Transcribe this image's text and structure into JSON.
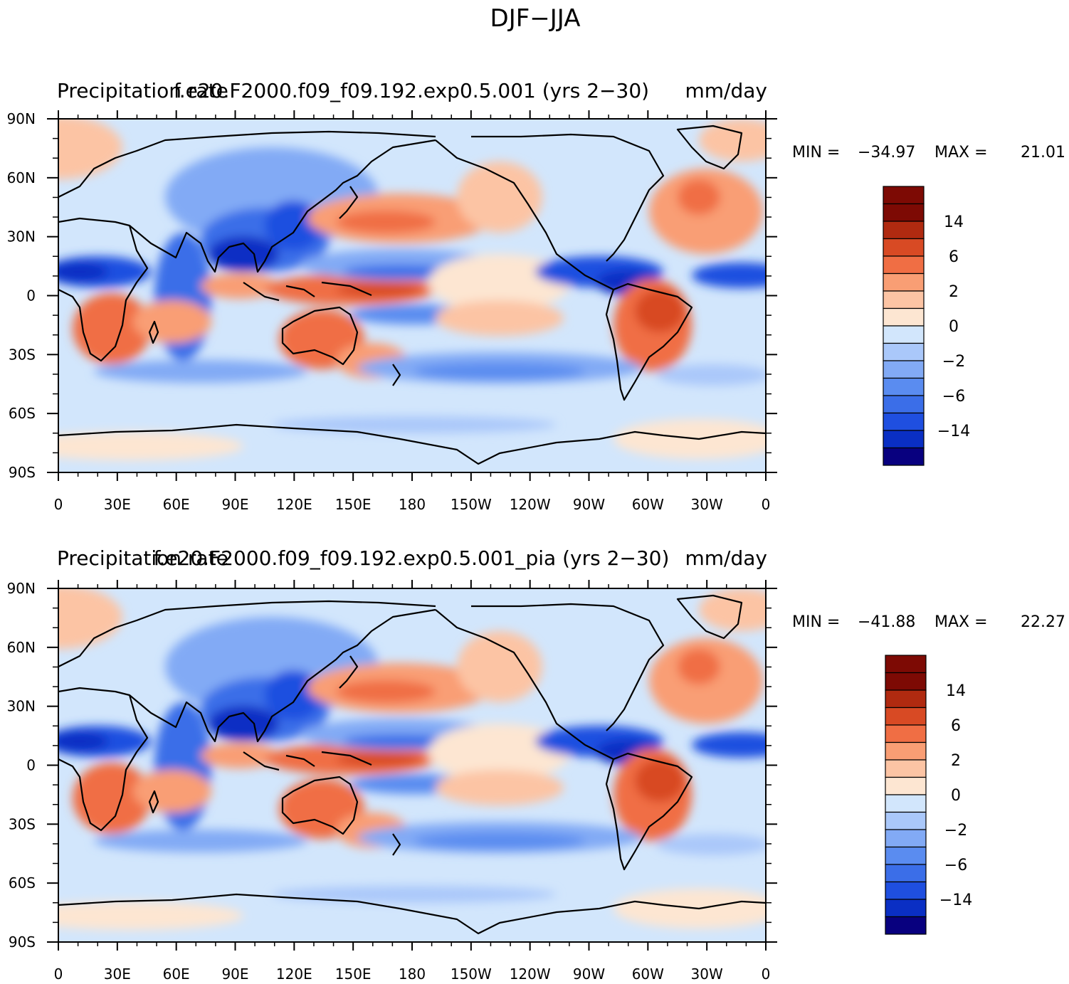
{
  "page": {
    "title": "DJF−JJA"
  },
  "colors": {
    "levels": [
      "#08007f",
      "#0a2fc4",
      "#1f4fe0",
      "#3b6ee8",
      "#5a8cf0",
      "#82aaf5",
      "#aac8fa",
      "#d2e6fc",
      "#fde6d2",
      "#fcc4a4",
      "#f99e74",
      "#f06e44",
      "#d84a24",
      "#b02a10",
      "#7d0a04"
    ],
    "coast": "#000000"
  },
  "panels": [
    {
      "id": "top",
      "left_title": "Precipitation rate",
      "center_title": "f.e20.F2000.f09_f09.192.exp0.5.001 (yrs 2−30)",
      "right_title": "mm/day",
      "stats": {
        "min_label": "MIN =",
        "min": "−34.97",
        "max_label": "MAX =",
        "max": "21.01"
      },
      "colorbar_labels": [
        "14",
        "6",
        "2",
        "0",
        "−2",
        "−6",
        "−14"
      ],
      "lat_labels": [
        "90N",
        "60N",
        "30N",
        "0",
        "30S",
        "60S",
        "90S"
      ],
      "lon_labels": [
        "0",
        "30E",
        "60E",
        "90E",
        "120E",
        "150E",
        "180",
        "150W",
        "120W",
        "90W",
        "60W",
        "30W",
        "0"
      ]
    },
    {
      "id": "bottom",
      "left_title": "Precipitation rate",
      "center_title": "f.e20.F2000.f09_f09.192.exp0.5.001_pia (yrs 2−30)",
      "right_title": "mm/day",
      "stats": {
        "min_label": "MIN =",
        "min": "−41.88",
        "max_label": "MAX =",
        "max": "22.27"
      },
      "colorbar_labels": [
        "14",
        "6",
        "2",
        "0",
        "−2",
        "−6",
        "−14"
      ],
      "lat_labels": [
        "90N",
        "60N",
        "30N",
        "0",
        "30S",
        "60S",
        "90S"
      ],
      "lon_labels": [
        "0",
        "30E",
        "60E",
        "90E",
        "120E",
        "150E",
        "180",
        "150W",
        "120W",
        "90W",
        "60W",
        "30W",
        "0"
      ]
    }
  ]
}
